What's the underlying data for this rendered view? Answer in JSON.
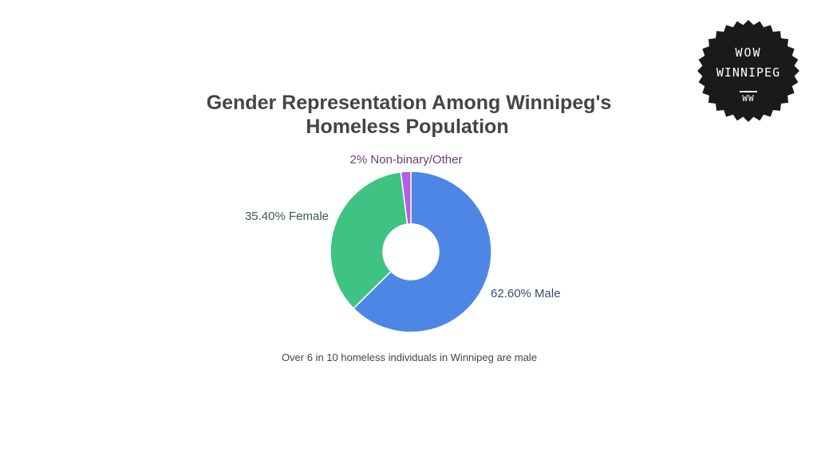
{
  "chart_data": {
    "type": "pie",
    "donut": true,
    "title_lines": [
      "Gender Representation Among Winnipeg's",
      "Homeless Population"
    ],
    "categories": [
      "Male",
      "Female",
      "Non-binary/Other"
    ],
    "values": [
      62.6,
      35.4,
      2
    ],
    "labels": [
      "62.60% Male",
      "35.40% Female",
      "2% Non-binary/Other"
    ],
    "colors": [
      "#4e86e6",
      "#3fc383",
      "#b45de8"
    ],
    "label_colors": [
      "#3f4b66",
      "#3f5a4c",
      "#6a3d7a"
    ],
    "start_angle_deg": 0,
    "direction": "clockwise",
    "caption": "Over 6 in 10 homeless individuals in Winnipeg are male"
  },
  "logo": {
    "line1": "WOW",
    "line2": "WINNIPEG",
    "mark": "WW",
    "background": "#1a1a1a"
  }
}
